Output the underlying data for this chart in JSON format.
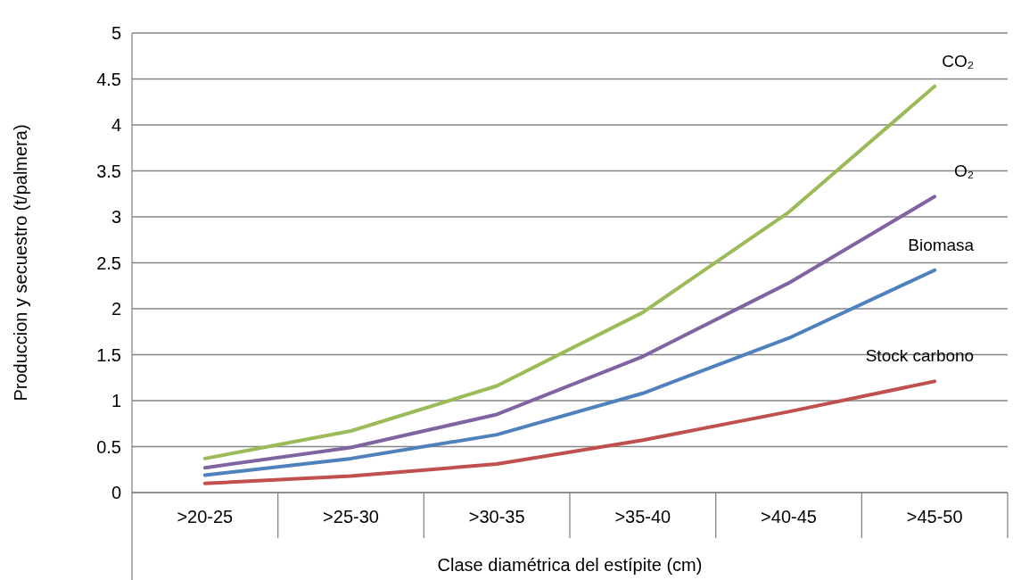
{
  "chart_data": {
    "type": "line",
    "xlabel": "Clase diamétrica del estípite (cm)",
    "ylabel": "Produccion y secuestro  (t/palmera)",
    "categories": [
      ">20-25",
      ">25-30",
      ">30-35",
      ">35-40",
      ">40-45",
      ">45-50"
    ],
    "series": [
      {
        "name": "CO₂",
        "color": "#9bbb59",
        "values": [
          0.37,
          0.67,
          1.16,
          1.96,
          3.05,
          4.42
        ]
      },
      {
        "name": "O₂",
        "color": "#8064a2",
        "values": [
          0.27,
          0.49,
          0.85,
          1.48,
          2.28,
          3.22
        ]
      },
      {
        "name": "Biomasa",
        "color": "#4f81bd",
        "values": [
          0.19,
          0.37,
          0.63,
          1.08,
          1.68,
          2.42
        ]
      },
      {
        "name": "Stock carbono",
        "color": "#c0504d",
        "values": [
          0.1,
          0.18,
          0.31,
          0.57,
          0.88,
          1.21
        ]
      }
    ],
    "ylim": [
      0,
      5
    ],
    "yticks": [
      0,
      0.5,
      1,
      1.5,
      2,
      2.5,
      3,
      3.5,
      4,
      4.5,
      5
    ],
    "grid": "y",
    "legend": false,
    "marker": "none",
    "line_style": "solid"
  }
}
